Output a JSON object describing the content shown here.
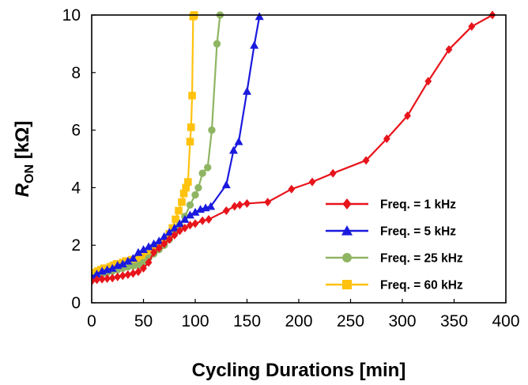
{
  "chart_data": {
    "type": "line",
    "title": "",
    "xlabel": "Cycling Durations [min]",
    "ylabel_main": "R",
    "ylabel_sub": "ON",
    "ylabel_unit": " [kΩ]",
    "xlim": [
      0,
      400
    ],
    "ylim": [
      0,
      10
    ],
    "x_ticks": [
      "0",
      "50",
      "100",
      "150",
      "200",
      "250",
      "300",
      "350",
      "400"
    ],
    "y_ticks": [
      "0",
      "2",
      "4",
      "6",
      "8",
      "10"
    ],
    "grid": false,
    "legend_position": "lower-right",
    "series": [
      {
        "name": "Freq. = 1 kHz",
        "color": "#e8141b",
        "marker": "diamond",
        "x": [
          0,
          5,
          10,
          15,
          20,
          25,
          30,
          35,
          40,
          45,
          50,
          55,
          60,
          65,
          70,
          75,
          80,
          85,
          90,
          95,
          100,
          107,
          113,
          130,
          138,
          143,
          150,
          170,
          193,
          213,
          233,
          265,
          285,
          305,
          325,
          345,
          367,
          387
        ],
        "y": [
          0.75,
          0.8,
          0.82,
          0.84,
          0.86,
          0.9,
          0.94,
          0.98,
          1.02,
          1.08,
          1.2,
          1.4,
          1.75,
          1.9,
          2.05,
          2.2,
          2.35,
          2.5,
          2.6,
          2.7,
          2.75,
          2.85,
          2.9,
          3.2,
          3.35,
          3.4,
          3.45,
          3.5,
          3.95,
          4.2,
          4.5,
          4.95,
          5.7,
          6.5,
          7.7,
          8.8,
          9.6,
          10.0
        ]
      },
      {
        "name": "Freq. = 5 kHz",
        "color": "#1a1adf",
        "marker": "triangle",
        "x": [
          0,
          5,
          10,
          15,
          20,
          25,
          30,
          35,
          40,
          45,
          50,
          55,
          60,
          65,
          70,
          75,
          80,
          85,
          90,
          95,
          100,
          105,
          110,
          115,
          130,
          137,
          142,
          150,
          157,
          162
        ],
        "y": [
          0.9,
          1.0,
          1.1,
          1.15,
          1.2,
          1.3,
          1.35,
          1.45,
          1.55,
          1.75,
          1.85,
          1.95,
          2.05,
          2.15,
          2.3,
          2.45,
          2.6,
          2.75,
          2.9,
          3.05,
          3.15,
          3.25,
          3.3,
          3.35,
          4.1,
          5.3,
          5.6,
          7.35,
          8.95,
          9.95
        ]
      },
      {
        "name": "Freq. = 25 kHz",
        "color": "#8fb562",
        "marker": "circle",
        "x": [
          0,
          5,
          10,
          15,
          20,
          25,
          30,
          35,
          40,
          45,
          50,
          55,
          60,
          65,
          70,
          75,
          80,
          85,
          90,
          95,
          100,
          103,
          107,
          112,
          116,
          121,
          124
        ],
        "y": [
          0.8,
          0.95,
          1.0,
          1.05,
          1.1,
          1.15,
          1.2,
          1.25,
          1.28,
          1.3,
          1.4,
          1.55,
          1.7,
          1.85,
          2.0,
          2.2,
          2.4,
          2.7,
          3.0,
          3.4,
          3.75,
          4.0,
          4.5,
          4.7,
          6.0,
          9.0,
          10.0
        ]
      },
      {
        "name": "Freq. = 60 kHz",
        "color": "#ffc20e",
        "marker": "square",
        "x": [
          0,
          3,
          6,
          9,
          12,
          15,
          18,
          21,
          24,
          27,
          30,
          33,
          36,
          39,
          42,
          45,
          48,
          51,
          54,
          57,
          60,
          63,
          66,
          69,
          72,
          75,
          78,
          81,
          84,
          87,
          89,
          91,
          93,
          95,
          96,
          97,
          98,
          99
        ],
        "y": [
          1.0,
          1.05,
          1.1,
          1.15,
          1.2,
          1.2,
          1.25,
          1.3,
          1.35,
          1.35,
          1.4,
          1.45,
          1.45,
          1.5,
          1.5,
          1.55,
          1.6,
          1.65,
          1.7,
          1.8,
          1.85,
          1.95,
          2.0,
          2.1,
          2.2,
          2.4,
          2.6,
          2.9,
          3.2,
          3.5,
          3.8,
          4.0,
          4.2,
          5.6,
          6.1,
          7.2,
          9.95,
          10.0
        ]
      }
    ]
  }
}
